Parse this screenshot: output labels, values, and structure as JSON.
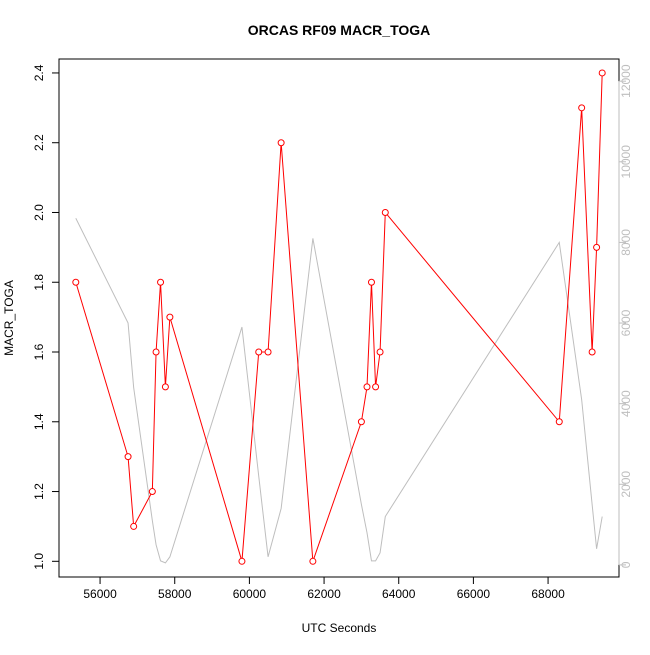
{
  "chart_data": {
    "type": "line",
    "title": "ORCAS RF09 MACR_TOGA",
    "xlabel": "UTC Seconds",
    "ylabel": "MACR_TOGA",
    "xlim": [
      54900,
      69900
    ],
    "ylim": [
      0.955,
      2.44
    ],
    "y2lim": [
      -300,
      12550
    ],
    "x_ticks": [
      56000,
      58000,
      60000,
      62000,
      64000,
      66000,
      68000
    ],
    "y_ticks": [
      1.0,
      1.2,
      1.4,
      1.6,
      1.8,
      2.0,
      2.2,
      2.4
    ],
    "y2_ticks": [
      0,
      2000,
      4000,
      6000,
      8000,
      10000,
      12000
    ],
    "colors": {
      "main": "#ff0000",
      "secondary": "#bebebe",
      "axis": "#000000",
      "axis2": "#bebebe"
    },
    "series": [
      {
        "axis": "left",
        "x": [
          55350,
          56750,
          56900,
          57400,
          57500,
          57620,
          57750,
          57870,
          59800,
          60250,
          60500,
          60850,
          61700,
          63000,
          63150,
          63270,
          63380,
          63500,
          63640,
          68300,
          68900,
          69180,
          69300,
          69450
        ],
        "y": [
          1.8,
          1.3,
          1.1,
          1.2,
          1.6,
          1.8,
          1.5,
          1.7,
          1.0,
          1.6,
          1.6,
          2.2,
          1.0,
          1.4,
          1.5,
          1.8,
          1.5,
          1.6,
          2.0,
          1.4,
          2.3,
          1.6,
          1.9,
          2.4
        ]
      },
      {
        "axis": "right",
        "x": [
          55350,
          56750,
          56900,
          57400,
          57500,
          57620,
          57750,
          57870,
          59800,
          60250,
          60500,
          60850,
          61700,
          63000,
          63150,
          63270,
          63380,
          63500,
          63640,
          68300,
          68900,
          69180,
          69300,
          69450
        ],
        "y": [
          8600,
          6000,
          4400,
          1100,
          500,
          100,
          50,
          200,
          5900,
          2200,
          200,
          1400,
          8100,
          1500,
          800,
          100,
          100,
          300,
          1200,
          8000,
          4100,
          1500,
          400,
          1200
        ]
      }
    ]
  }
}
